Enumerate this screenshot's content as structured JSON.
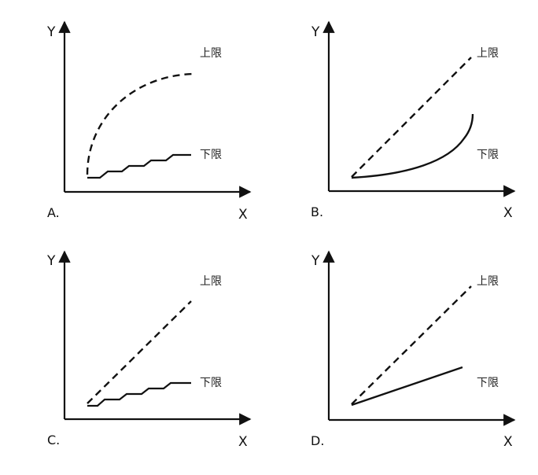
{
  "figure": {
    "panels": [
      {
        "id": "A",
        "letter": "A.",
        "y_axis_label": "Y",
        "x_axis_label": "X",
        "upper_label": "上限",
        "lower_label": "下限",
        "upper_style": "dashed-curve",
        "lower_style": "step"
      },
      {
        "id": "B",
        "letter": "B.",
        "y_axis_label": "Y",
        "x_axis_label": "X",
        "upper_label": "上限",
        "lower_label": "下限",
        "upper_style": "dashed-line",
        "lower_style": "convex-curve"
      },
      {
        "id": "C",
        "letter": "C.",
        "y_axis_label": "Y",
        "x_axis_label": "X",
        "upper_label": "上限",
        "lower_label": "下限",
        "upper_style": "dashed-line",
        "lower_style": "step"
      },
      {
        "id": "D",
        "letter": "D.",
        "y_axis_label": "Y",
        "x_axis_label": "X",
        "upper_label": "上限",
        "lower_label": "下限",
        "upper_style": "dashed-line",
        "lower_style": "solid-line"
      }
    ],
    "colors": {
      "stroke": "#111111",
      "background": "#ffffff"
    }
  }
}
